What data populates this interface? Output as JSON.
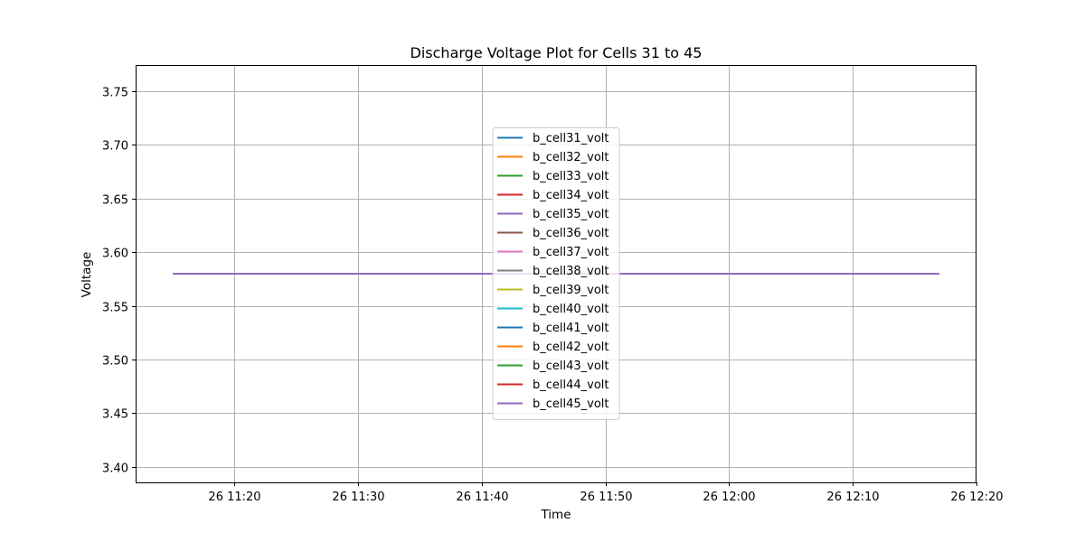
{
  "chart_data": {
    "type": "line",
    "title": "Discharge Voltage Plot for Cells 31 to 45",
    "xlabel": "Time",
    "ylabel": "Voltage",
    "x_tick_labels": [
      "26 11:20",
      "26 11:30",
      "26 11:40",
      "26 11:50",
      "26 12:00",
      "26 12:10",
      "26 12:20"
    ],
    "x_tick_minutes": [
      680,
      690,
      700,
      710,
      720,
      730,
      740
    ],
    "x": [
      "11:15",
      "12:17"
    ],
    "xlim": [
      "11:12",
      "12:20"
    ],
    "y_tick_labels": [
      "3.40",
      "3.45",
      "3.50",
      "3.55",
      "3.60",
      "3.65",
      "3.70",
      "3.75"
    ],
    "y_tick_values": [
      3.4,
      3.45,
      3.5,
      3.55,
      3.6,
      3.65,
      3.7,
      3.75
    ],
    "ylim": [
      3.3856,
      3.7744
    ],
    "grid": true,
    "legend_position": "center",
    "series": [
      {
        "name": "b_cell31_volt",
        "color": "#1f77b4",
        "values": [
          3.58,
          3.58
        ]
      },
      {
        "name": "b_cell32_volt",
        "color": "#ff7f0e",
        "values": [
          3.58,
          3.58
        ]
      },
      {
        "name": "b_cell33_volt",
        "color": "#2ca02c",
        "values": [
          3.58,
          3.58
        ]
      },
      {
        "name": "b_cell34_volt",
        "color": "#d62728",
        "values": [
          3.58,
          3.58
        ]
      },
      {
        "name": "b_cell35_volt",
        "color": "#9467bd",
        "values": [
          3.58,
          3.58
        ]
      },
      {
        "name": "b_cell36_volt",
        "color": "#8c564b",
        "values": [
          3.58,
          3.58
        ]
      },
      {
        "name": "b_cell37_volt",
        "color": "#e377c2",
        "values": [
          3.58,
          3.58
        ]
      },
      {
        "name": "b_cell38_volt",
        "color": "#7f7f7f",
        "values": [
          3.58,
          3.58
        ]
      },
      {
        "name": "b_cell39_volt",
        "color": "#bcbd22",
        "values": [
          3.58,
          3.58
        ]
      },
      {
        "name": "b_cell40_volt",
        "color": "#17becf",
        "values": [
          3.58,
          3.58
        ]
      },
      {
        "name": "b_cell41_volt",
        "color": "#1f77b4",
        "values": [
          3.58,
          3.58
        ]
      },
      {
        "name": "b_cell42_volt",
        "color": "#ff7f0e",
        "values": [
          3.58,
          3.58
        ]
      },
      {
        "name": "b_cell43_volt",
        "color": "#2ca02c",
        "values": [
          3.58,
          3.58
        ]
      },
      {
        "name": "b_cell44_volt",
        "color": "#d62728",
        "values": [
          3.58,
          3.58
        ]
      },
      {
        "name": "b_cell45_volt",
        "color": "#9467bd",
        "values": [
          3.58,
          3.58
        ]
      }
    ]
  }
}
